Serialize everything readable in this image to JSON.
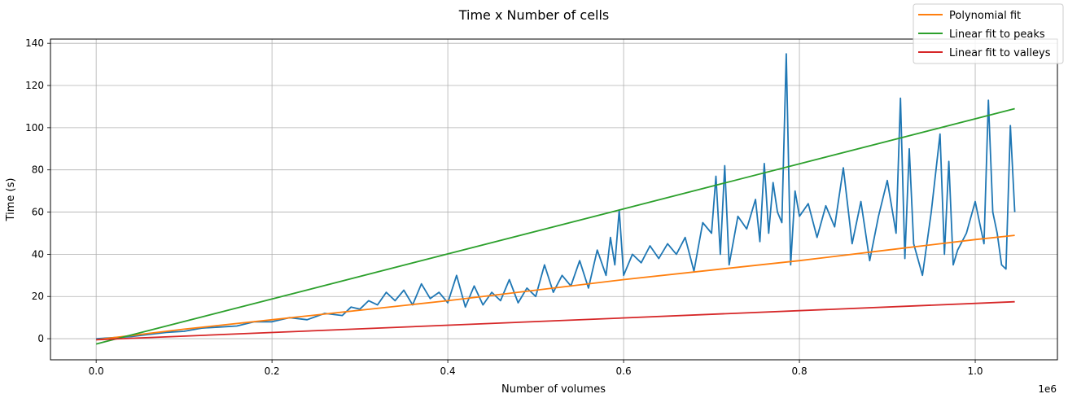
{
  "chart_data": {
    "type": "line",
    "title": "Time x Number of cells",
    "xlabel": "Number of volumes",
    "ylabel": "Time (s)",
    "x_offset_label": "1e6",
    "xlim": [
      -0.052,
      1.0935
    ],
    "ylim": [
      -10,
      142
    ],
    "xticks": [
      0.0,
      0.2,
      0.4,
      0.6,
      0.8,
      1.0
    ],
    "xtick_labels": [
      "0.0",
      "0.2",
      "0.4",
      "0.6",
      "0.8",
      "1.0"
    ],
    "yticks": [
      0,
      20,
      40,
      60,
      80,
      100,
      120,
      140
    ],
    "ytick_labels": [
      "0",
      "20",
      "40",
      "60",
      "80",
      "100",
      "120",
      "140"
    ],
    "grid": true,
    "legend_position": "top-right",
    "series": [
      {
        "name": "",
        "color": "#1f77b4",
        "x": [
          0.0,
          0.02,
          0.04,
          0.06,
          0.08,
          0.1,
          0.12,
          0.14,
          0.16,
          0.18,
          0.2,
          0.22,
          0.24,
          0.26,
          0.28,
          0.29,
          0.3,
          0.31,
          0.32,
          0.33,
          0.34,
          0.35,
          0.36,
          0.37,
          0.38,
          0.39,
          0.4,
          0.41,
          0.42,
          0.43,
          0.44,
          0.45,
          0.46,
          0.47,
          0.48,
          0.49,
          0.5,
          0.51,
          0.52,
          0.53,
          0.54,
          0.55,
          0.56,
          0.57,
          0.58,
          0.585,
          0.59,
          0.595,
          0.6,
          0.61,
          0.62,
          0.63,
          0.64,
          0.65,
          0.66,
          0.67,
          0.68,
          0.69,
          0.7,
          0.705,
          0.71,
          0.715,
          0.72,
          0.73,
          0.74,
          0.75,
          0.755,
          0.76,
          0.765,
          0.77,
          0.775,
          0.78,
          0.785,
          0.79,
          0.795,
          0.8,
          0.81,
          0.82,
          0.83,
          0.84,
          0.85,
          0.86,
          0.87,
          0.88,
          0.89,
          0.9,
          0.91,
          0.915,
          0.92,
          0.925,
          0.93,
          0.94,
          0.95,
          0.96,
          0.965,
          0.97,
          0.975,
          0.98,
          0.99,
          1.0,
          1.005,
          1.01,
          1.015,
          1.02,
          1.025,
          1.03,
          1.035,
          1.04,
          1.045
        ],
        "values": [
          0,
          0.5,
          1,
          2,
          3,
          3.5,
          5,
          5.5,
          6,
          8,
          8,
          10,
          9,
          12,
          11,
          15,
          14,
          18,
          16,
          22,
          18,
          23,
          16,
          26,
          19,
          22,
          17,
          30,
          15,
          25,
          16,
          22,
          18,
          28,
          17,
          24,
          20,
          35,
          22,
          30,
          25,
          37,
          24,
          42,
          30,
          48,
          35,
          61,
          30,
          40,
          36,
          44,
          38,
          45,
          40,
          48,
          32,
          55,
          50,
          77,
          40,
          82,
          35,
          58,
          52,
          66,
          46,
          83,
          50,
          74,
          60,
          55,
          135,
          35,
          70,
          58,
          64,
          48,
          63,
          53,
          81,
          45,
          65,
          37,
          58,
          75,
          50,
          114,
          38,
          90,
          45,
          30,
          60,
          97,
          40,
          84,
          35,
          42,
          50,
          65,
          55,
          45,
          113,
          60,
          50,
          35,
          33,
          101,
          60
        ]
      },
      {
        "name": "Polynomial fit",
        "color": "#ff7f0e",
        "x": [
          0.0,
          0.1,
          0.2,
          0.3,
          0.4,
          0.5,
          0.6,
          0.7,
          0.8,
          0.9,
          1.0,
          1.045
        ],
        "values": [
          -0.5,
          4.5,
          9,
          13.5,
          18,
          23,
          28,
          32.5,
          37,
          42,
          47,
          49
        ]
      },
      {
        "name": "Linear fit to peaks",
        "color": "#2ca02c",
        "x": [
          0.0,
          1.045
        ],
        "values": [
          -2.5,
          109
        ]
      },
      {
        "name": "Linear fit to valleys",
        "color": "#d62728",
        "x": [
          0.0,
          1.045
        ],
        "values": [
          -0.5,
          17.5
        ]
      }
    ]
  }
}
